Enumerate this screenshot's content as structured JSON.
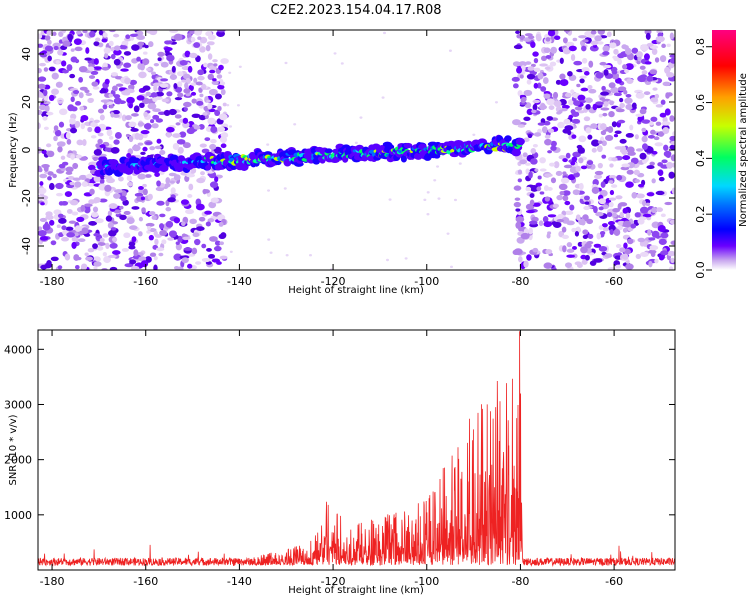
{
  "title": "C2E2.2023.154.04.17.R08",
  "chart_data": [
    {
      "type": "heatmap",
      "xlabel": "Height of straight line (km)",
      "ylabel": "Frequency (Hz)",
      "xlim": [
        -183,
        -47
      ],
      "ylim": [
        -50,
        50
      ],
      "xticks": [
        -180,
        -160,
        -140,
        -120,
        -100,
        -80,
        -60
      ],
      "yticks": [
        -40,
        -20,
        0,
        20,
        40
      ],
      "colorbar": {
        "label": "Normalized spectral amplitude",
        "range": [
          0,
          0.86
        ],
        "ticks": [
          0.0,
          0.2,
          0.4,
          0.6,
          0.8
        ],
        "colormap": [
          "#ffffff",
          "#c9a8ef",
          "#6a00ff",
          "#0000ff",
          "#00d8ff",
          "#00ff60",
          "#c8ff00",
          "#ffa000",
          "#ff0000",
          "#ff0080"
        ]
      },
      "signal_band": {
        "x_start": -170,
        "x_end": -80,
        "freq_at_start": -7,
        "freq_at_end": 2
      },
      "noise_regions": [
        [
          -183,
          -143
        ],
        [
          -81,
          -47
        ]
      ]
    },
    {
      "type": "line",
      "xlabel": "Height of straight line (km)",
      "ylabel": "SNR (10 * v/v)",
      "xlim": [
        -183,
        -47
      ],
      "ylim": [
        0,
        4350
      ],
      "xticks": [
        -180,
        -160,
        -140,
        -120,
        -100,
        -80,
        -60
      ],
      "yticks": [
        1000,
        2000,
        3000,
        4000
      ],
      "color": "#ee2222",
      "noise_baseline": 180,
      "x": [
        -183,
        -170,
        -160,
        -150,
        -140,
        -135,
        -130,
        -125,
        -122,
        -120,
        -117,
        -115,
        -110,
        -105,
        -100,
        -97,
        -95,
        -92,
        -90,
        -87,
        -85,
        -83,
        -82,
        -81,
        -80,
        -79.5,
        -79,
        -70,
        -60,
        -47
      ],
      "y": [
        180,
        190,
        200,
        210,
        230,
        280,
        350,
        500,
        1200,
        1230,
        800,
        850,
        900,
        1100,
        1300,
        1700,
        2000,
        2500,
        2800,
        3100,
        3300,
        3500,
        3600,
        4100,
        4350,
        400,
        200,
        190,
        180,
        180
      ]
    }
  ]
}
